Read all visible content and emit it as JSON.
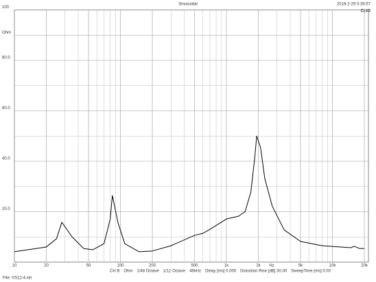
{
  "chart_data": {
    "type": "line",
    "title": "Sinusoidal",
    "timestamp": "2016-2-29 0:36:57",
    "logo": "CLIO",
    "x_unit": "Hz",
    "xscale": "log",
    "x": [
      10,
      20,
      25,
      28,
      35,
      45,
      55,
      70,
      80,
      84,
      95,
      110,
      150,
      200,
      300,
      500,
      600,
      700,
      1000,
      1300,
      1500,
      1700,
      1850,
      1930,
      2100,
      2300,
      2700,
      3500,
      5000,
      8000,
      15000,
      16000,
      18000,
      20000
    ],
    "series": [
      {
        "name": "Ohm",
        "color": "#000000",
        "values": [
          4.1,
          6,
          9.3,
          15.8,
          10,
          5.4,
          4.9,
          7.3,
          16.9,
          26.4,
          15.5,
          7.3,
          4.1,
          4.4,
          6.5,
          10.6,
          11.4,
          13,
          17.1,
          18.2,
          20,
          27.8,
          41.4,
          50,
          45.4,
          33.2,
          22.3,
          12.8,
          8.2,
          6.5,
          5.7,
          6.3,
          5.4,
          5.4
        ]
      }
    ],
    "xlim": [
      10,
      20000
    ],
    "xticks": [
      10,
      20,
      50,
      100,
      200,
      500,
      {
        "value": 1000,
        "label": "1k"
      },
      {
        "value": 2000,
        "label": "2k"
      },
      {
        "value": 5000,
        "label": "5k"
      },
      {
        "value": 10000,
        "label": "10k"
      },
      {
        "value": 20000,
        "label": "20k"
      }
    ],
    "x_minor_ticks": [
      30,
      40,
      60,
      70,
      80,
      90,
      300,
      400,
      600,
      700,
      800,
      900,
      3000,
      4000,
      6000,
      7000,
      8000,
      9000
    ],
    "ylim": [
      0,
      100
    ],
    "yticks": [
      {
        "value": 100,
        "label": "100"
      },
      {
        "value": 90,
        "label": "Ohm"
      },
      {
        "value": 80,
        "label": "80.0"
      },
      {
        "value": 60,
        "label": "60.0"
      },
      {
        "value": 40,
        "label": "40.0"
      },
      {
        "value": 20,
        "label": "20.0"
      }
    ],
    "y_minor_ticks": [
      10,
      30,
      50,
      70
    ],
    "grid": true,
    "settings": [
      "CH B",
      "Ohm",
      "1/48 Octave",
      "1/12 Octave",
      "48kHz",
      "Delay [ms] 0.000",
      "Distortion Rise [dB] 30.00",
      "SweepTime [ms] 0.00"
    ],
    "file": "File: VS12-4.sin"
  }
}
